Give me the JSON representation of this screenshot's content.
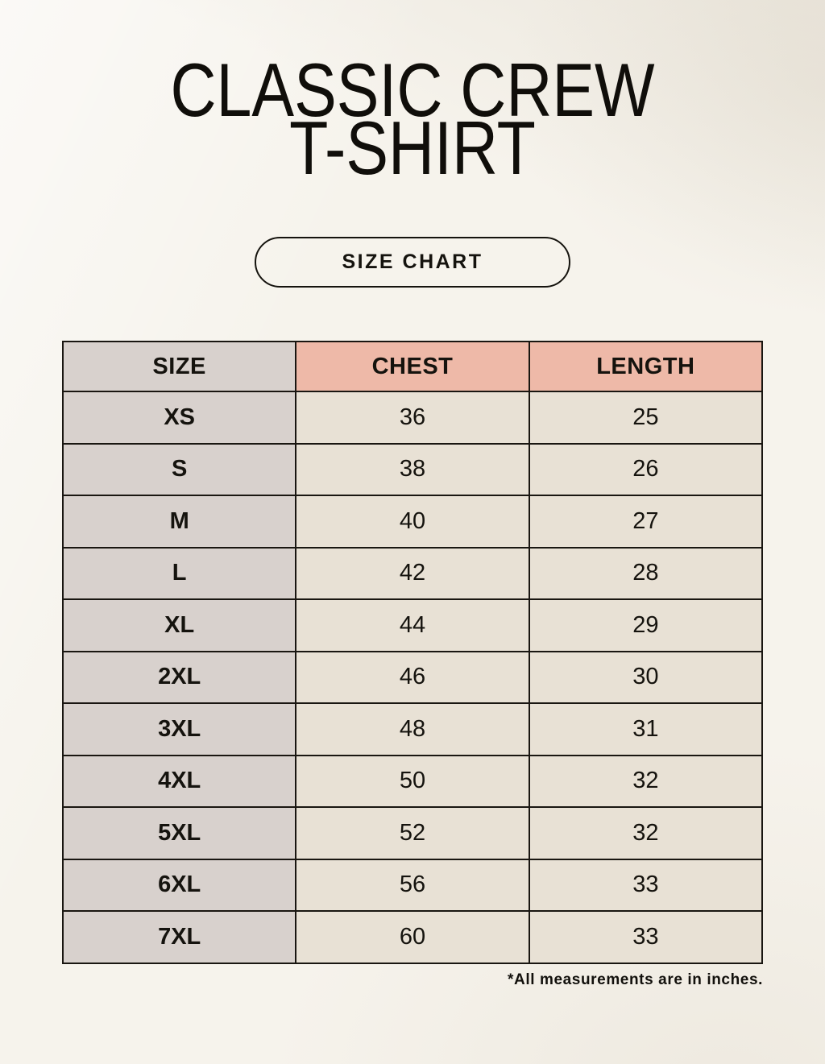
{
  "header": {
    "title_line1": "CLASSIC CREW",
    "title_line2": "T-SHIRT"
  },
  "size_chart_button": {
    "label": "SIZE CHART"
  },
  "footnote": {
    "text": "*All measurements are in inches."
  },
  "colors": {
    "page_background": "#f6f3ec",
    "accent_header": "#eeb9a8",
    "size_column": "#d8d1cd",
    "cell_background": "#e8e1d5",
    "table_border": "#191611",
    "text": "#15130e"
  },
  "chart_data": {
    "type": "table",
    "title": "Classic Crew T-Shirt Size Chart",
    "columns": [
      "SIZE",
      "CHEST",
      "LENGTH"
    ],
    "rows": [
      [
        "XS",
        36,
        25
      ],
      [
        "S",
        38,
        26
      ],
      [
        "M",
        40,
        27
      ],
      [
        "L",
        42,
        28
      ],
      [
        "XL",
        44,
        29
      ],
      [
        "2XL",
        46,
        30
      ],
      [
        "3XL",
        48,
        31
      ],
      [
        "4XL",
        50,
        32
      ],
      [
        "5XL",
        52,
        32
      ],
      [
        "6XL",
        56,
        33
      ],
      [
        "7XL",
        60,
        33
      ]
    ],
    "units": "inches"
  }
}
